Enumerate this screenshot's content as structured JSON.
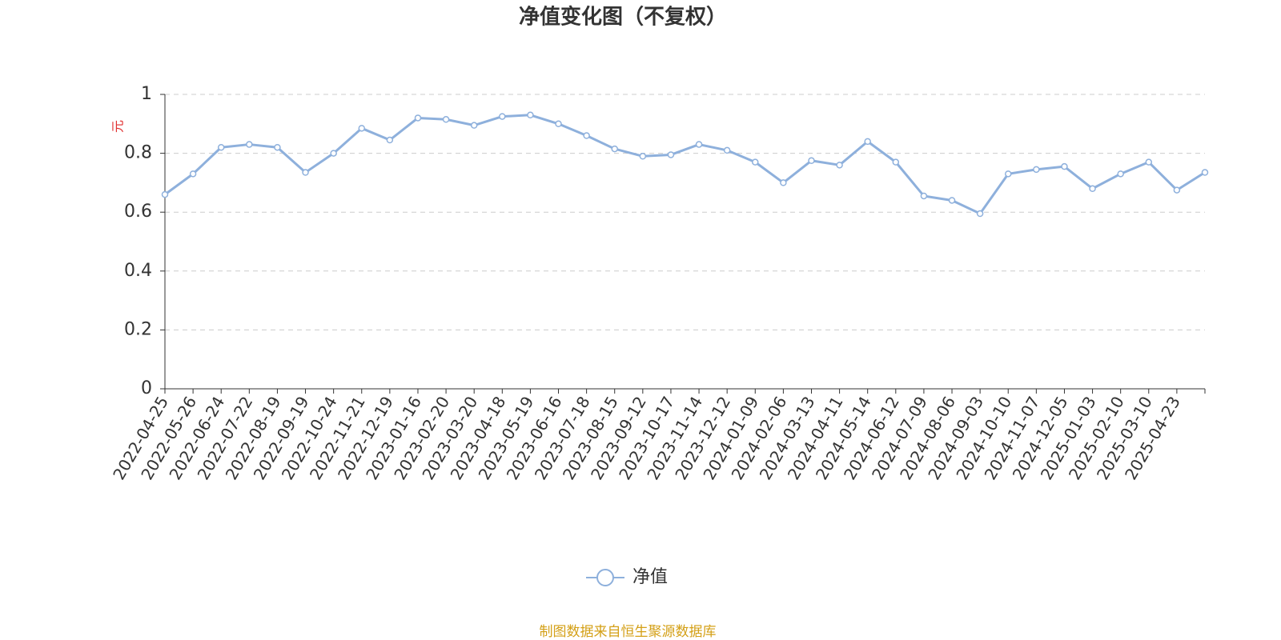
{
  "chart_data": {
    "type": "line",
    "title": "净值变化图（不复权）",
    "y_label": "元",
    "source": "制图数据来自恒生聚源数据库",
    "categories": [
      "2022-04-25",
      "2022-05-26",
      "2022-06-24",
      "2022-07-22",
      "2022-08-19",
      "2022-09-19",
      "2022-10-24",
      "2022-11-21",
      "2022-12-19",
      "2023-01-16",
      "2023-02-20",
      "2023-03-20",
      "2023-04-18",
      "2023-05-19",
      "2023-06-16",
      "2023-07-18",
      "2023-08-15",
      "2023-09-12",
      "2023-10-17",
      "2023-11-14",
      "2023-12-12",
      "2024-01-09",
      "2024-02-06",
      "2024-03-13",
      "2024-04-11",
      "2024-05-14",
      "2024-06-12",
      "2024-07-09",
      "2024-08-06",
      "2024-09-03",
      "2024-10-10",
      "2024-11-07",
      "2024-12-05",
      "2025-01-03",
      "2025-02-10",
      "2025-03-10",
      "2025-04-23",
      null
    ],
    "series": [
      {
        "name": "净值",
        "color": "#8eb0dc",
        "values": [
          0.66,
          0.73,
          0.82,
          0.83,
          0.82,
          0.735,
          0.8,
          0.885,
          0.845,
          0.92,
          0.915,
          0.895,
          0.925,
          0.93,
          0.9,
          0.86,
          0.815,
          0.79,
          0.795,
          0.83,
          0.81,
          0.77,
          0.7,
          0.775,
          0.76,
          0.84,
          0.77,
          0.655,
          0.64,
          0.595,
          0.73,
          0.745,
          0.755,
          0.68,
          0.73,
          0.77,
          0.675,
          0.735
        ]
      }
    ],
    "ylim": [
      0,
      1
    ],
    "yticks": [
      0,
      0.2,
      0.4,
      0.6,
      0.8,
      1
    ],
    "grid": true
  }
}
